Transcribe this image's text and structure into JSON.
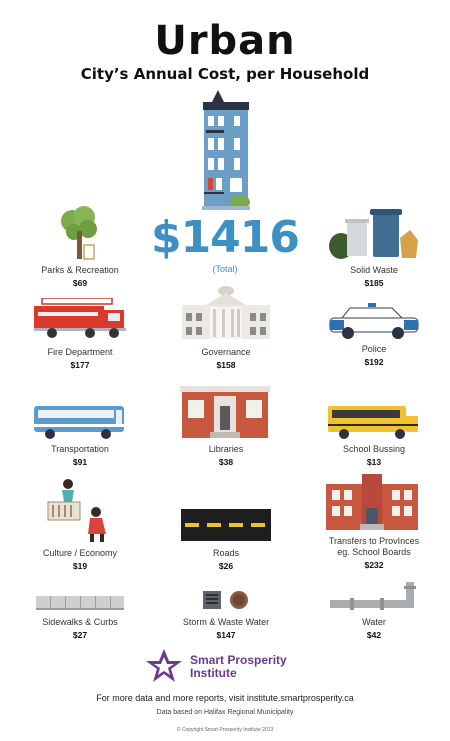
{
  "header": {
    "title": "Urban",
    "subtitle": "City’s Annual Cost, per Household"
  },
  "total": {
    "amount": "$1416",
    "label": "(Total)"
  },
  "colors": {
    "accent_blue": "#3e8fc3",
    "brick": "#c8573f",
    "fire_red": "#d93a2b",
    "bus_yellow": "#f2c12e",
    "logo_purple": "#6b3a8c"
  },
  "items": [
    {
      "label": "Parks & Recreation",
      "cost": "$69",
      "icon": "tree-icon"
    },
    {
      "label": "Solid Waste",
      "cost": "$185",
      "icon": "garbage-bins-icon"
    },
    {
      "label": "Fire Department",
      "cost": "$177",
      "icon": "fire-truck-icon"
    },
    {
      "label": "Governance",
      "cost": "$158",
      "icon": "city-hall-icon"
    },
    {
      "label": "Police",
      "cost": "$192",
      "icon": "police-car-icon"
    },
    {
      "label": "Transportation",
      "cost": "$91",
      "icon": "bus-icon"
    },
    {
      "label": "Libraries",
      "cost": "$38",
      "icon": "library-icon"
    },
    {
      "label": "School Bussing",
      "cost": "$13",
      "icon": "school-bus-icon"
    },
    {
      "label": "Culture / Economy",
      "cost": "$19",
      "icon": "culture-icon"
    },
    {
      "label": "Roads",
      "cost": "$26",
      "icon": "road-icon"
    },
    {
      "label": "Transfers to ProvInces",
      "label2": "eg. School Boards",
      "cost": "$232",
      "icon": "school-building-icon"
    },
    {
      "label": "Sidewalks & Curbs",
      "cost": "$27",
      "icon": "sidewalk-icon"
    },
    {
      "label": "Storm & Waste Water",
      "cost": "$147",
      "icon": "storm-drain-icon"
    },
    {
      "label": "Water",
      "cost": "$42",
      "icon": "water-pipe-icon"
    }
  ],
  "logo": {
    "line1": "Smart Prosperity",
    "line2": "Institute"
  },
  "footer": {
    "line1": "For more data and more  reports, visit institute.smartprosperity.ca",
    "line2": "Data based on Halifax Regional Municipality",
    "line3": "© Copyright Smart Prosperity Institute 2013"
  }
}
